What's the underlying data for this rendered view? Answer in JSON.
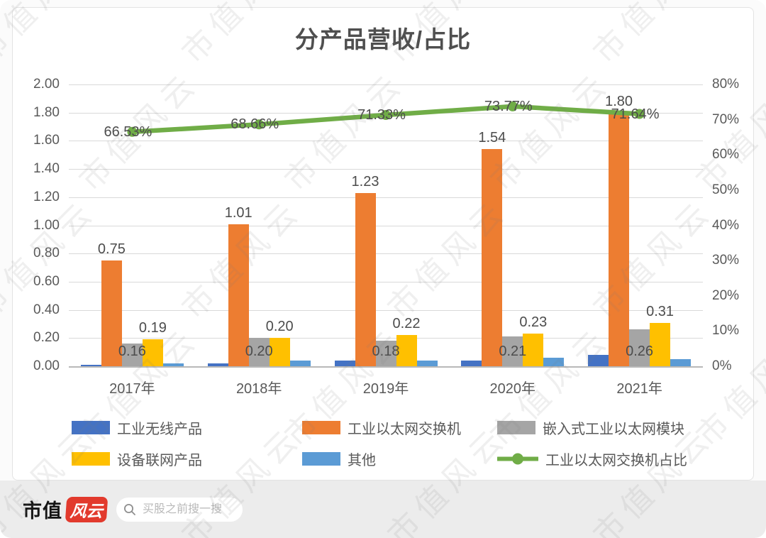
{
  "title": "分产品营收/占比",
  "watermark": {
    "text": "市值风云"
  },
  "footer": {
    "logo_text": "市值",
    "logo_badge_text": "风云",
    "brand_red": "#e23a2d",
    "search_placeholder": "买股之前搜一搜"
  },
  "chart_data": {
    "type": "bar",
    "subtype": "grouped-bars-with-percentage-line",
    "title": "分产品营收/占比",
    "categories": [
      "2017年",
      "2018年",
      "2019年",
      "2020年",
      "2021年"
    ],
    "series": [
      {
        "id": "industrial-wireless",
        "name": "工业无线产品",
        "type": "bar",
        "axis": "left",
        "color": "#4472c4",
        "values": [
          0.01,
          0.02,
          0.04,
          0.04,
          0.08
        ],
        "labels": null
      },
      {
        "id": "industrial-ethernet-switch",
        "name": "工业以太网交换机",
        "type": "bar",
        "axis": "left",
        "color": "#ed7d31",
        "values": [
          0.75,
          1.01,
          1.23,
          1.54,
          1.8
        ],
        "labels": [
          "0.75",
          "1.01",
          "1.23",
          "1.54",
          "1.80"
        ]
      },
      {
        "id": "embedded-ethernet-module",
        "name": "嵌入式工业以太网模块",
        "type": "bar",
        "axis": "left",
        "color": "#a5a5a5",
        "values": [
          0.16,
          0.2,
          0.18,
          0.21,
          0.26
        ],
        "labels": [
          "0.16",
          "0.20",
          "0.18",
          "0.21",
          "0.26"
        ]
      },
      {
        "id": "device-networking",
        "name": "设备联网产品",
        "type": "bar",
        "axis": "left",
        "color": "#ffc000",
        "values": [
          0.19,
          0.2,
          0.22,
          0.23,
          0.31
        ],
        "labels": [
          "0.19",
          "0.20",
          "0.22",
          "0.23",
          "0.31"
        ]
      },
      {
        "id": "other",
        "name": "其他",
        "type": "bar",
        "axis": "left",
        "color": "#5b9bd5",
        "values": [
          0.02,
          0.04,
          0.04,
          0.06,
          0.05
        ],
        "labels": null
      },
      {
        "id": "switch-revenue-share",
        "name": "工业以太网交换机占比",
        "type": "line",
        "axis": "right",
        "color": "#70ad47",
        "values": [
          66.53,
          68.66,
          71.33,
          73.77,
          71.64
        ],
        "labels": [
          "66.53%",
          "68.66%",
          "71.33%",
          "73.77%",
          "71.64%"
        ]
      }
    ],
    "left_axis": {
      "min": 0,
      "max": 2.0,
      "step": 0.2,
      "ticks": [
        "0.00",
        "0.20",
        "0.40",
        "0.60",
        "0.80",
        "1.00",
        "1.20",
        "1.40",
        "1.60",
        "1.80",
        "2.00"
      ]
    },
    "right_axis": {
      "min": 0,
      "max": 80,
      "step": 10,
      "unit": "%",
      "ticks": [
        "0%",
        "10%",
        "20%",
        "30%",
        "40%",
        "50%",
        "60%",
        "70%",
        "80%"
      ]
    },
    "grid": true,
    "legend_position": "bottom"
  }
}
